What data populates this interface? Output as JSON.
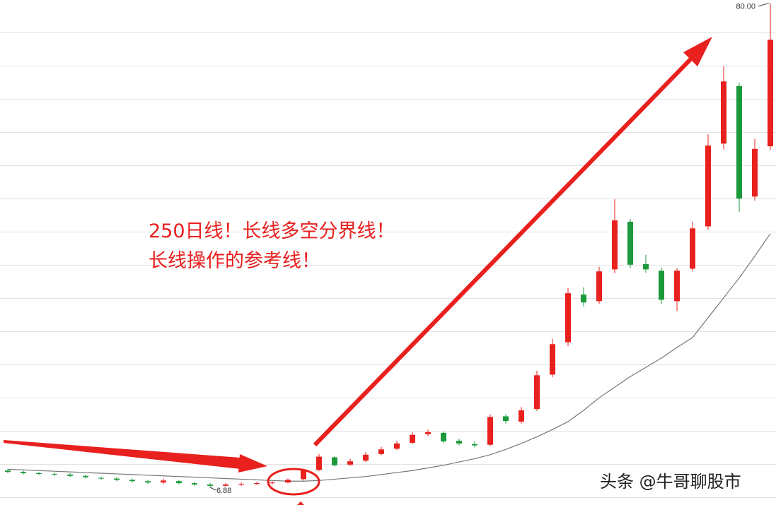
{
  "chart_data": {
    "type": "candlestick",
    "annotation_lines": [
      "250日线！长线多空分界线！",
      "长线操作的参考线！"
    ],
    "watermark": "头条 @牛哥聊股市",
    "ylim": [
      4.2,
      80.5
    ],
    "up_color": "#e8201e",
    "down_color": "#1b9a3c",
    "open": [
      9.4,
      9.2,
      9.0,
      8.9,
      8.8,
      8.6,
      8.3,
      8.2,
      8.0,
      7.8,
      7.6,
      7.8,
      7.5,
      7.3,
      7.1,
      7.3,
      7.4,
      7.5,
      7.6,
      8.1,
      9.5,
      11.4,
      10.3,
      10.9,
      11.9,
      12.7,
      13.6,
      14.9,
      15.1,
      13.9,
      13.4,
      13.3,
      17.6,
      16.8,
      18.7,
      23.9,
      28.8,
      36.0,
      35.0,
      39.8,
      47.0,
      40.6,
      39.6,
      35.0,
      39.9,
      46.3,
      58.8,
      67.5,
      50.8,
      58.4
    ],
    "high": [
      9.6,
      9.4,
      9.2,
      9.1,
      9.0,
      8.8,
      8.5,
      8.4,
      8.2,
      8.0,
      8.2,
      8.0,
      7.7,
      7.5,
      7.5,
      7.6,
      7.7,
      7.8,
      8.2,
      9.6,
      11.9,
      11.6,
      11.2,
      12.2,
      13.0,
      13.9,
      15.2,
      15.6,
      15.3,
      14.2,
      13.8,
      17.9,
      17.9,
      19.0,
      24.5,
      29.3,
      37.0,
      37.1,
      40.2,
      50.4,
      47.4,
      42.0,
      40.1,
      40.0,
      47.0,
      60.2,
      70.5,
      68.0,
      59.5,
      80.0
    ],
    "low": [
      9.0,
      8.8,
      8.7,
      8.6,
      8.4,
      8.2,
      8.0,
      7.8,
      7.6,
      7.4,
      7.4,
      7.3,
      7.1,
      6.88,
      7.0,
      7.1,
      7.2,
      7.3,
      7.5,
      7.9,
      9.3,
      10.0,
      10.1,
      10.7,
      11.7,
      12.5,
      13.4,
      14.6,
      13.6,
      13.2,
      12.9,
      13.1,
      16.5,
      16.5,
      18.4,
      23.5,
      28.2,
      34.2,
      34.6,
      39.2,
      40.0,
      39.3,
      34.6,
      33.5,
      39.5,
      45.8,
      57.9,
      48.5,
      50.2,
      57.8
    ],
    "close": [
      9.2,
      9.0,
      8.9,
      8.8,
      8.6,
      8.4,
      8.2,
      8.0,
      7.8,
      7.6,
      7.9,
      7.5,
      7.3,
      7.1,
      7.3,
      7.4,
      7.5,
      7.6,
      8.0,
      9.4,
      11.5,
      10.2,
      10.8,
      11.8,
      12.6,
      13.5,
      14.8,
      15.2,
      13.8,
      13.5,
      13.2,
      17.5,
      16.9,
      18.5,
      23.8,
      28.5,
      36.2,
      34.8,
      39.5,
      47.2,
      40.5,
      39.8,
      35.2,
      39.6,
      46.0,
      58.5,
      68.2,
      50.5,
      58.0,
      74.5
    ],
    "ma": {
      "color": "#777777",
      "values": [
        9.6,
        9.5,
        9.4,
        9.3,
        9.2,
        9.1,
        9.0,
        8.9,
        8.8,
        8.7,
        8.6,
        8.5,
        8.4,
        8.3,
        8.2,
        8.1,
        8.0,
        7.9,
        7.8,
        7.8,
        7.9,
        8.1,
        8.3,
        8.5,
        8.8,
        9.1,
        9.4,
        9.8,
        10.2,
        10.7,
        11.2,
        11.8,
        12.6,
        13.5,
        14.5,
        15.6,
        16.8,
        18.5,
        20.4,
        22.0,
        23.6,
        25.0,
        26.4,
        28.0,
        29.5,
        32.5,
        35.5,
        38.5,
        41.8,
        45.2
      ]
    },
    "max_label": {
      "value": 80,
      "label": "80.00"
    },
    "min_label": {
      "value": 6.88,
      "label": "6.88"
    }
  }
}
